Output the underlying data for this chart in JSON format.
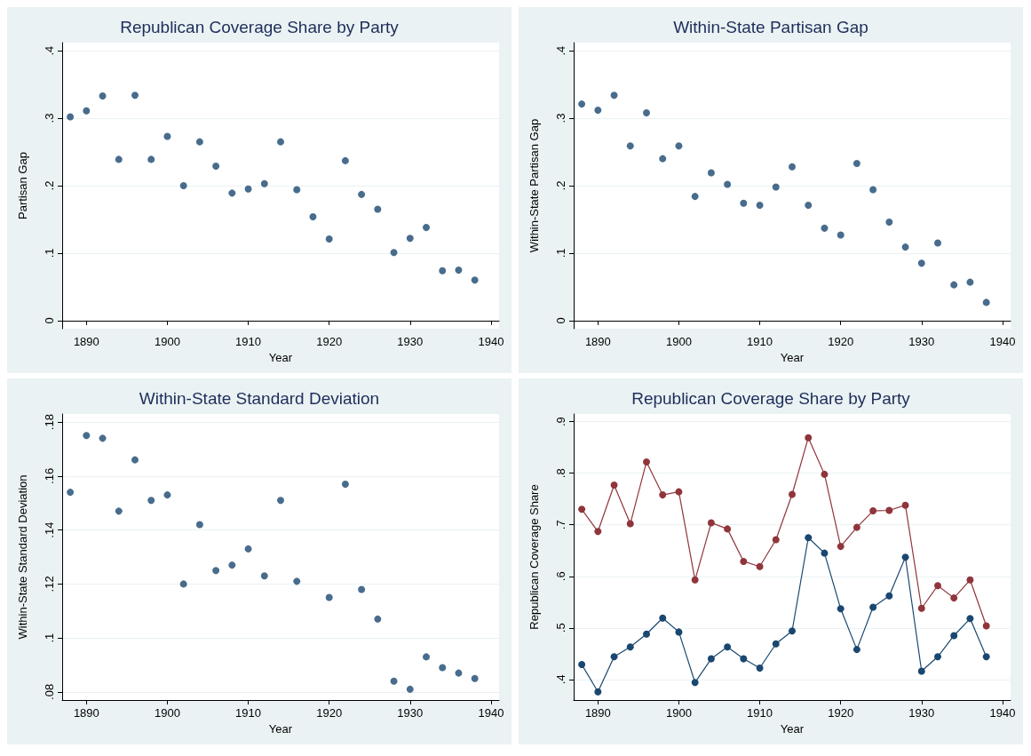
{
  "chart_data": [
    {
      "type": "scatter",
      "title": "Republican Coverage Share by Party",
      "xlabel": "Year",
      "ylabel": "Partisan Gap",
      "x": [
        1888,
        1890,
        1892,
        1894,
        1896,
        1898,
        1900,
        1902,
        1904,
        1906,
        1908,
        1910,
        1912,
        1914,
        1916,
        1918,
        1920,
        1922,
        1924,
        1926,
        1928,
        1930,
        1932,
        1934,
        1936,
        1938
      ],
      "values": [
        0.302,
        0.311,
        0.333,
        0.239,
        0.334,
        0.239,
        0.273,
        0.2,
        0.265,
        0.229,
        0.189,
        0.195,
        0.203,
        0.265,
        0.194,
        0.154,
        0.121,
        0.237,
        0.187,
        0.165,
        0.101,
        0.122,
        0.138,
        0.074,
        0.075,
        0.06
      ],
      "color": "#1a476f",
      "xlim": [
        1887,
        1941
      ],
      "ylim": [
        -0.012,
        0.412
      ],
      "xticks": [
        1890,
        1900,
        1910,
        1920,
        1930,
        1940
      ],
      "yticks": [
        0,
        {
          "value": 0.1,
          "label": ".1"
        },
        {
          "value": 0.2,
          "label": ".2"
        },
        {
          "value": 0.3,
          "label": ".3"
        },
        {
          "value": 0.4,
          "label": ".4"
        }
      ],
      "grid": "y",
      "marker": "circle"
    },
    {
      "type": "scatter",
      "title": "Within-State Partisan Gap",
      "xlabel": "Year",
      "ylabel": "Within-State Partisan Gap",
      "x": [
        1888,
        1890,
        1892,
        1894,
        1896,
        1898,
        1900,
        1902,
        1904,
        1906,
        1908,
        1910,
        1912,
        1914,
        1916,
        1918,
        1920,
        1922,
        1924,
        1926,
        1928,
        1930,
        1932,
        1934,
        1936,
        1938
      ],
      "values": [
        0.321,
        0.312,
        0.334,
        0.259,
        0.308,
        0.24,
        0.259,
        0.184,
        0.219,
        0.202,
        0.174,
        0.171,
        0.198,
        0.228,
        0.171,
        0.137,
        0.127,
        0.233,
        0.194,
        0.146,
        0.109,
        0.085,
        0.115,
        0.053,
        0.057,
        0.027
      ],
      "color": "#1a476f",
      "xlim": [
        1887,
        1941
      ],
      "ylim": [
        -0.012,
        0.412
      ],
      "xticks": [
        1890,
        1900,
        1910,
        1920,
        1930,
        1940
      ],
      "yticks": [
        0,
        {
          "value": 0.1,
          "label": ".1"
        },
        {
          "value": 0.2,
          "label": ".2"
        },
        {
          "value": 0.3,
          "label": ".3"
        },
        {
          "value": 0.4,
          "label": ".4"
        }
      ],
      "grid": "y",
      "marker": "circle"
    },
    {
      "type": "scatter",
      "title": "Within-State Standard Deviation",
      "xlabel": "Year",
      "ylabel": "Within-State Standard Deviation",
      "x": [
        1888,
        1890,
        1892,
        1894,
        1896,
        1898,
        1900,
        1902,
        1904,
        1906,
        1908,
        1910,
        1912,
        1914,
        1916,
        1918,
        1920,
        1922,
        1924,
        1926,
        1928,
        1930,
        1932,
        1934,
        1936,
        1938
      ],
      "values": [
        0.154,
        0.175,
        0.174,
        0.147,
        0.166,
        0.151,
        0.153,
        0.12,
        0.142,
        0.125,
        0.127,
        0.133,
        0.123,
        0.151,
        0.121,
        null,
        0.115,
        0.157,
        0.118,
        0.107,
        0.084,
        0.081,
        0.093,
        0.089,
        0.087,
        0.085
      ],
      "color": "#1a476f",
      "xlim": [
        1887,
        1941
      ],
      "ylim": [
        0.077,
        0.183
      ],
      "xticks": [
        1890,
        1900,
        1910,
        1920,
        1930,
        1940
      ],
      "yticks": [
        {
          "value": 0.08,
          "label": ".08"
        },
        {
          "value": 0.1,
          "label": ".1"
        },
        {
          "value": 0.12,
          "label": ".12"
        },
        {
          "value": 0.14,
          "label": ".14"
        },
        {
          "value": 0.16,
          "label": ".16"
        },
        {
          "value": 0.18,
          "label": ".18"
        }
      ],
      "grid": "y",
      "marker": "circle"
    },
    {
      "type": "line",
      "title": "Republican Coverage Share by Party",
      "xlabel": "Year",
      "ylabel": "Republican Coverage Share",
      "x": [
        1888,
        1890,
        1892,
        1894,
        1896,
        1898,
        1900,
        1902,
        1904,
        1906,
        1908,
        1910,
        1912,
        1914,
        1916,
        1918,
        1920,
        1922,
        1924,
        1926,
        1928,
        1930,
        1932,
        1934,
        1936,
        1938
      ],
      "series": [
        {
          "color": "#90353b",
          "values": [
            0.73,
            0.687,
            0.777,
            0.702,
            0.822,
            0.758,
            0.764,
            0.593,
            0.704,
            0.692,
            0.629,
            0.619,
            0.671,
            0.759,
            0.869,
            0.798,
            0.658,
            0.695,
            0.727,
            0.728,
            0.738,
            0.538,
            0.582,
            0.558,
            0.593,
            0.504
          ]
        },
        {
          "color": "#1a476f",
          "values": [
            0.429,
            0.376,
            0.444,
            0.463,
            0.488,
            0.519,
            0.492,
            0.394,
            0.44,
            0.463,
            0.44,
            0.422,
            0.469,
            0.494,
            0.675,
            0.645,
            0.537,
            0.458,
            0.54,
            0.562,
            0.637,
            0.416,
            0.444,
            0.485,
            0.518,
            0.444
          ]
        }
      ],
      "xlim": [
        1887,
        1941
      ],
      "ylim": [
        0.36,
        0.915
      ],
      "xticks": [
        1890,
        1900,
        1910,
        1920,
        1930,
        1940
      ],
      "yticks": [
        {
          "value": 0.4,
          "label": ".4"
        },
        {
          "value": 0.5,
          "label": ".5"
        },
        {
          "value": 0.6,
          "label": ".6"
        },
        {
          "value": 0.7,
          "label": ".7"
        },
        {
          "value": 0.8,
          "label": ".8"
        },
        {
          "value": 0.9,
          "label": ".9"
        }
      ],
      "grid": "y",
      "marker": "circle"
    }
  ]
}
